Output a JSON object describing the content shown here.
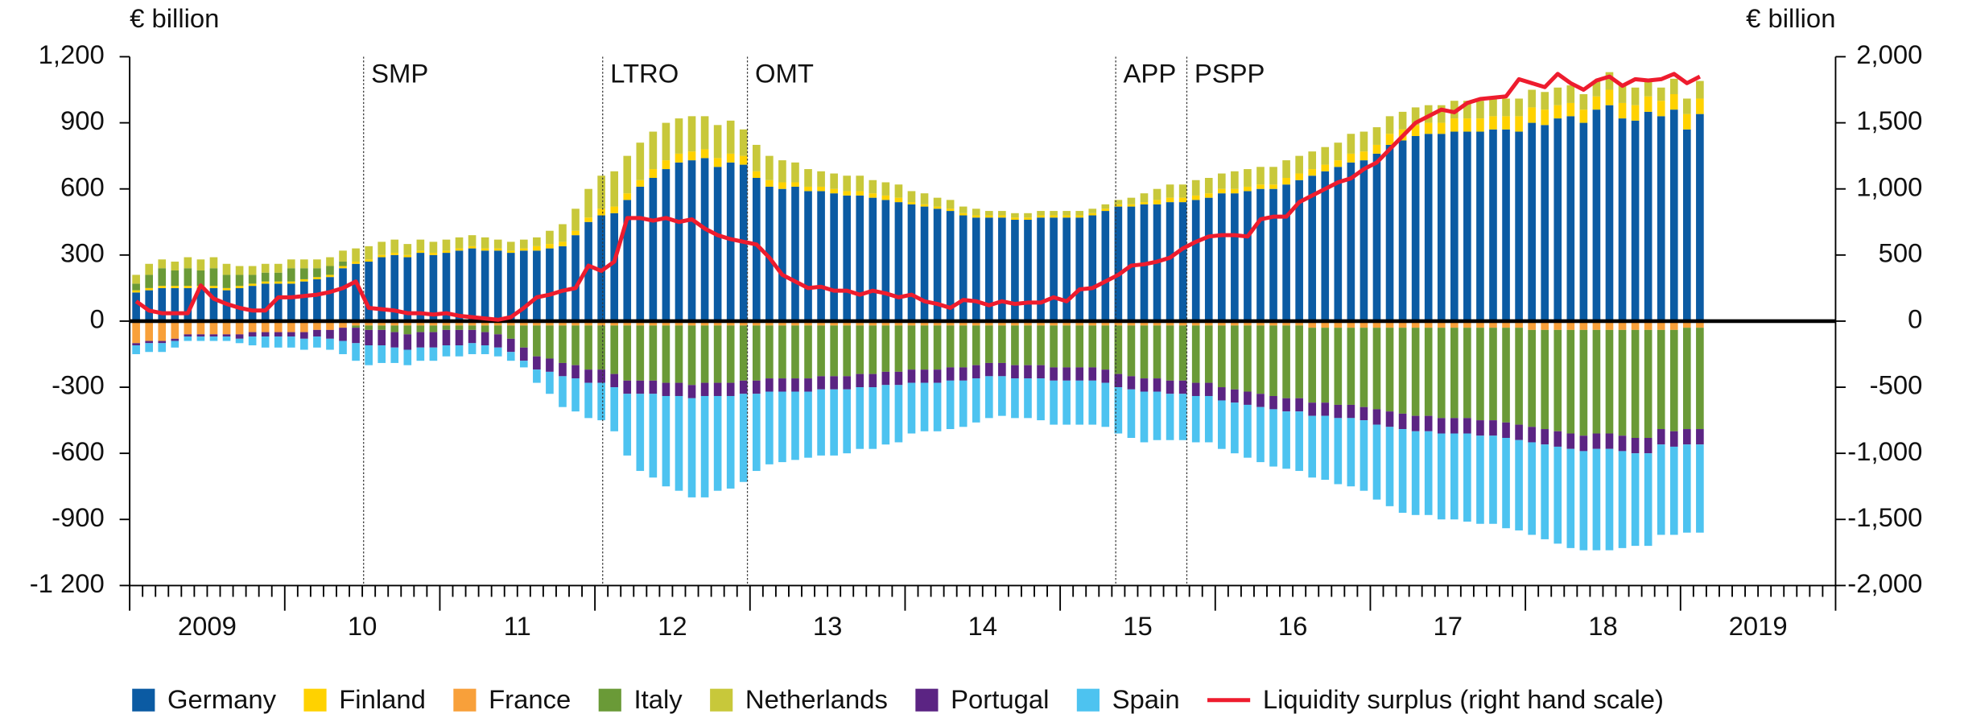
{
  "chart_data": {
    "type": "bar",
    "stacked": true,
    "y_label": "€ billion",
    "y2_label": "€ billion",
    "categories": [
      null,
      null,
      null,
      null,
      null,
      null,
      null,
      null,
      null,
      null,
      null,
      null,
      null,
      null,
      null,
      null,
      null,
      null,
      null,
      null,
      null,
      null,
      null,
      null,
      null,
      null,
      null,
      null,
      null,
      null,
      null,
      null,
      null,
      null,
      null,
      null,
      null,
      null,
      null,
      null,
      null,
      null,
      null,
      null,
      null,
      null,
      null,
      null,
      null,
      null,
      null,
      null,
      null,
      null,
      null,
      null,
      null,
      null,
      null,
      null,
      null,
      null,
      null,
      null,
      null,
      null,
      null,
      null,
      null,
      null,
      null,
      null,
      null,
      null,
      null,
      null,
      null,
      null,
      null,
      null,
      null,
      null,
      null,
      null,
      null,
      null,
      null,
      null,
      null,
      null,
      null,
      null,
      null,
      null,
      null,
      null,
      null,
      null,
      null,
      null,
      null,
      null,
      null,
      null,
      null,
      null,
      null,
      null,
      null,
      null,
      null,
      null,
      null,
      null,
      null,
      null,
      null,
      null,
      null,
      null,
      null,
      null
    ],
    "xlim": [
      -0.5,
      131.5
    ],
    "xticks": [
      {
        "value": 5.5,
        "label": "2009"
      },
      {
        "value": 17.5,
        "label": "10"
      },
      {
        "value": 29.5,
        "label": "11"
      },
      {
        "value": 41.5,
        "label": "12"
      },
      {
        "value": 53.5,
        "label": "13"
      },
      {
        "value": 65.5,
        "label": "14"
      },
      {
        "value": 77.5,
        "label": "15"
      },
      {
        "value": 89.5,
        "label": "16"
      },
      {
        "value": 101.5,
        "label": "17"
      },
      {
        "value": 113.5,
        "label": "18"
      },
      {
        "value": 125.5,
        "label": "2019"
      }
    ],
    "ylim": [
      -1200,
      1200
    ],
    "yticks": [
      {
        "value": -1200,
        "label": "-1 200"
      },
      -900,
      -600,
      -300,
      0,
      300,
      600,
      900,
      {
        "value": 1200,
        "label": "1,200"
      }
    ],
    "y2lim": [
      -2000,
      2000
    ],
    "y2ticks": [
      {
        "value": -2000,
        "label": "-2,000"
      },
      {
        "value": -1500,
        "label": "-1,500"
      },
      {
        "value": -1000,
        "label": "-1,000"
      },
      -500,
      0,
      500,
      {
        "value": 1000,
        "label": "1,000"
      },
      {
        "value": 1500,
        "label": "1,500"
      },
      {
        "value": 2000,
        "label": "2,000"
      }
    ],
    "annotations": [
      {
        "label": "SMP",
        "x": 17.6
      },
      {
        "label": "LTRO",
        "x": 36.1
      },
      {
        "label": "OMT",
        "x": 47.3
      },
      {
        "label": "APP",
        "x": 75.8
      },
      {
        "label": "PSPP",
        "x": 81.3
      }
    ],
    "series": [
      {
        "name": "Germany",
        "color": "#0b5ba3",
        "values": [
          130,
          140,
          150,
          150,
          150,
          150,
          150,
          140,
          150,
          160,
          170,
          170,
          170,
          180,
          190,
          200,
          240,
          260,
          270,
          290,
          300,
          290,
          310,
          300,
          310,
          320,
          330,
          320,
          320,
          310,
          320,
          320,
          330,
          340,
          390,
          450,
          480,
          490,
          550,
          610,
          650,
          690,
          720,
          730,
          740,
          700,
          720,
          710,
          650,
          610,
          600,
          610,
          590,
          590,
          580,
          570,
          570,
          560,
          550,
          540,
          530,
          520,
          510,
          500,
          480,
          470,
          470,
          470,
          460,
          460,
          470,
          470,
          470,
          470,
          480,
          500,
          520,
          520,
          530,
          530,
          540,
          540,
          550,
          560,
          580,
          580,
          590,
          600,
          600,
          620,
          640,
          660,
          680,
          700,
          720,
          730,
          760,
          800,
          820,
          840,
          850,
          850,
          860,
          860,
          860,
          870,
          870,
          860,
          900,
          890,
          920,
          930,
          900,
          960,
          980,
          920,
          910,
          950,
          930,
          960,
          870,
          940
        ]
      },
      {
        "name": "Finland",
        "color": "#ffd200",
        "values": [
          10,
          10,
          10,
          10,
          10,
          10,
          10,
          10,
          10,
          10,
          10,
          10,
          10,
          10,
          10,
          10,
          10,
          10,
          10,
          10,
          10,
          10,
          10,
          10,
          10,
          10,
          10,
          10,
          10,
          10,
          10,
          20,
          20,
          20,
          20,
          20,
          30,
          30,
          30,
          30,
          40,
          40,
          40,
          40,
          40,
          40,
          40,
          40,
          30,
          30,
          30,
          20,
          20,
          20,
          20,
          20,
          20,
          20,
          20,
          20,
          10,
          10,
          10,
          10,
          10,
          10,
          10,
          10,
          10,
          10,
          10,
          10,
          10,
          10,
          10,
          10,
          10,
          10,
          10,
          20,
          20,
          20,
          20,
          20,
          20,
          20,
          20,
          20,
          20,
          30,
          30,
          30,
          30,
          30,
          40,
          40,
          40,
          50,
          50,
          50,
          50,
          50,
          60,
          60,
          60,
          60,
          60,
          70,
          70,
          70,
          60,
          60,
          60,
          60,
          70,
          70,
          70,
          70,
          70,
          70,
          70,
          70
        ]
      },
      {
        "name": "France",
        "color": "#f8a03a",
        "values": [
          -100,
          -90,
          -90,
          -80,
          -60,
          -60,
          -60,
          -60,
          -60,
          -50,
          -50,
          -50,
          -50,
          -50,
          -40,
          -40,
          -30,
          -20,
          -20,
          -20,
          -20,
          -20,
          -20,
          -20,
          -20,
          -20,
          -20,
          -20,
          -20,
          -20,
          -20,
          -20,
          -20,
          -20,
          -20,
          -20,
          -20,
          -20,
          -20,
          -20,
          -20,
          -20,
          -20,
          -20,
          -20,
          -20,
          -20,
          -20,
          -20,
          -20,
          -20,
          -20,
          -20,
          -20,
          -20,
          -20,
          -20,
          -20,
          -20,
          -20,
          -20,
          -20,
          -20,
          -20,
          -20,
          -20,
          -20,
          -20,
          -20,
          -20,
          -20,
          -20,
          -20,
          -20,
          -20,
          -20,
          -20,
          -20,
          -20,
          -20,
          -20,
          -20,
          -20,
          -20,
          -20,
          -20,
          -20,
          -20,
          -20,
          -20,
          -20,
          -30,
          -30,
          -30,
          -30,
          -30,
          -30,
          -30,
          -30,
          -30,
          -30,
          -30,
          -30,
          -30,
          -30,
          -30,
          -30,
          -30,
          -40,
          -40,
          -40,
          -40,
          -40,
          -40,
          -40,
          -40,
          -40,
          -40,
          -40,
          -40,
          -30,
          -30
        ]
      },
      {
        "name": "Italy",
        "color": "#6a9a37",
        "values": [
          30,
          60,
          80,
          70,
          80,
          70,
          80,
          60,
          50,
          40,
          40,
          40,
          60,
          50,
          40,
          40,
          20,
          -10,
          -20,
          -20,
          -30,
          -40,
          -30,
          -30,
          -20,
          -20,
          -20,
          -30,
          -40,
          -60,
          -100,
          -140,
          -150,
          -170,
          -180,
          -200,
          -200,
          -220,
          -250,
          -250,
          -250,
          -260,
          -260,
          -270,
          -260,
          -260,
          -260,
          -250,
          -250,
          -240,
          -240,
          -240,
          -240,
          -230,
          -230,
          -230,
          -220,
          -220,
          -210,
          -210,
          -200,
          -200,
          -200,
          -190,
          -190,
          -180,
          -170,
          -170,
          -180,
          -180,
          -180,
          -190,
          -190,
          -190,
          -190,
          -200,
          -220,
          -230,
          -240,
          -240,
          -250,
          -250,
          -260,
          -260,
          -280,
          -290,
          -300,
          -310,
          -320,
          -330,
          -330,
          -340,
          -340,
          -350,
          -350,
          -360,
          -370,
          -380,
          -390,
          -400,
          -400,
          -410,
          -410,
          -410,
          -420,
          -420,
          -430,
          -440,
          -440,
          -450,
          -460,
          -470,
          -480,
          -470,
          -470,
          -480,
          -490,
          -490,
          -450,
          -460,
          -460,
          -460
        ]
      },
      {
        "name": "Netherlands",
        "color": "#c8c83a",
        "values": [
          40,
          50,
          40,
          40,
          50,
          50,
          50,
          50,
          40,
          40,
          40,
          40,
          40,
          40,
          40,
          40,
          50,
          60,
          60,
          60,
          60,
          50,
          50,
          50,
          50,
          50,
          50,
          50,
          40,
          40,
          40,
          40,
          60,
          80,
          100,
          130,
          150,
          160,
          170,
          170,
          170,
          170,
          160,
          160,
          150,
          150,
          150,
          120,
          120,
          110,
          100,
          90,
          80,
          70,
          70,
          70,
          70,
          60,
          60,
          60,
          50,
          50,
          40,
          40,
          30,
          30,
          20,
          20,
          20,
          20,
          20,
          20,
          20,
          20,
          20,
          20,
          20,
          30,
          40,
          50,
          60,
          60,
          70,
          70,
          70,
          80,
          80,
          80,
          80,
          80,
          80,
          80,
          80,
          80,
          90,
          90,
          80,
          80,
          80,
          80,
          80,
          80,
          80,
          80,
          80,
          80,
          80,
          80,
          80,
          80,
          80,
          80,
          70,
          70,
          80,
          80,
          80,
          70,
          60,
          70,
          70,
          80
        ]
      },
      {
        "name": "Portugal",
        "color": "#5b2483",
        "values": [
          -10,
          -10,
          -10,
          -10,
          -10,
          -10,
          -10,
          -10,
          -20,
          -20,
          -20,
          -20,
          -20,
          -30,
          -30,
          -40,
          -60,
          -70,
          -70,
          -70,
          -70,
          -70,
          -70,
          -70,
          -70,
          -70,
          -60,
          -60,
          -60,
          -60,
          -60,
          -60,
          -60,
          -60,
          -60,
          -60,
          -60,
          -60,
          -60,
          -60,
          -60,
          -60,
          -60,
          -60,
          -60,
          -60,
          -60,
          -60,
          -60,
          -60,
          -60,
          -60,
          -60,
          -60,
          -60,
          -60,
          -60,
          -60,
          -60,
          -60,
          -60,
          -60,
          -60,
          -60,
          -60,
          -60,
          -60,
          -60,
          -60,
          -60,
          -60,
          -60,
          -60,
          -60,
          -60,
          -60,
          -60,
          -60,
          -60,
          -60,
          -60,
          -60,
          -60,
          -60,
          -60,
          -60,
          -60,
          -60,
          -60,
          -60,
          -60,
          -60,
          -60,
          -60,
          -60,
          -60,
          -70,
          -70,
          -70,
          -70,
          -70,
          -70,
          -70,
          -70,
          -70,
          -70,
          -70,
          -70,
          -70,
          -70,
          -70,
          -70,
          -70,
          -70,
          -70,
          -70,
          -70,
          -70,
          -70,
          -70,
          -70,
          -70
        ]
      },
      {
        "name": "Spain",
        "color": "#4dc3f0",
        "values": [
          -40,
          -40,
          -40,
          -30,
          -20,
          -20,
          -20,
          -20,
          -20,
          -40,
          -50,
          -50,
          -50,
          -50,
          -50,
          -50,
          -60,
          -80,
          -90,
          -80,
          -70,
          -70,
          -60,
          -60,
          -50,
          -50,
          -50,
          -40,
          -40,
          -40,
          -30,
          -60,
          -100,
          -140,
          -150,
          -160,
          -170,
          -200,
          -280,
          -350,
          -380,
          -410,
          -430,
          -450,
          -460,
          -430,
          -420,
          -400,
          -350,
          -330,
          -320,
          -310,
          -300,
          -300,
          -300,
          -290,
          -280,
          -280,
          -270,
          -260,
          -230,
          -220,
          -220,
          -220,
          -210,
          -200,
          -190,
          -180,
          -180,
          -180,
          -190,
          -200,
          -200,
          -200,
          -200,
          -200,
          -210,
          -220,
          -230,
          -220,
          -210,
          -210,
          -210,
          -210,
          -220,
          -230,
          -240,
          -250,
          -260,
          -260,
          -270,
          -280,
          -290,
          -300,
          -310,
          -320,
          -340,
          -360,
          -380,
          -380,
          -380,
          -390,
          -390,
          -400,
          -400,
          -400,
          -410,
          -410,
          -420,
          -430,
          -440,
          -450,
          -450,
          -460,
          -460,
          -440,
          -420,
          -420,
          -410,
          -400,
          -400,
          -400
        ]
      },
      {
        "name": "Liquidity surplus (right hand scale)",
        "color": "#ee1c2e",
        "type": "line",
        "axis": "y2",
        "values": [
          150,
          80,
          60,
          60,
          60,
          270,
          170,
          130,
          100,
          80,
          80,
          180,
          180,
          190,
          200,
          220,
          250,
          300,
          100,
          90,
          80,
          60,
          60,
          50,
          60,
          40,
          30,
          20,
          10,
          30,
          100,
          180,
          200,
          230,
          250,
          420,
          380,
          450,
          780,
          780,
          760,
          780,
          750,
          770,
          700,
          650,
          620,
          600,
          580,
          480,
          350,
          300,
          250,
          260,
          230,
          230,
          200,
          230,
          210,
          180,
          200,
          150,
          130,
          100,
          160,
          150,
          120,
          150,
          130,
          140,
          140,
          180,
          150,
          240,
          250,
          300,
          350,
          420,
          430,
          450,
          480,
          550,
          600,
          640,
          650,
          650,
          640,
          770,
          790,
          790,
          900,
          950,
          1000,
          1050,
          1080,
          1150,
          1200,
          1300,
          1400,
          1500,
          1550,
          1600,
          1580,
          1650,
          1680,
          1690,
          1700,
          1830,
          1800,
          1770,
          1870,
          1800,
          1750,
          1820,
          1850,
          1780,
          1830,
          1820,
          1830,
          1870,
          1800,
          1850
        ]
      }
    ]
  }
}
